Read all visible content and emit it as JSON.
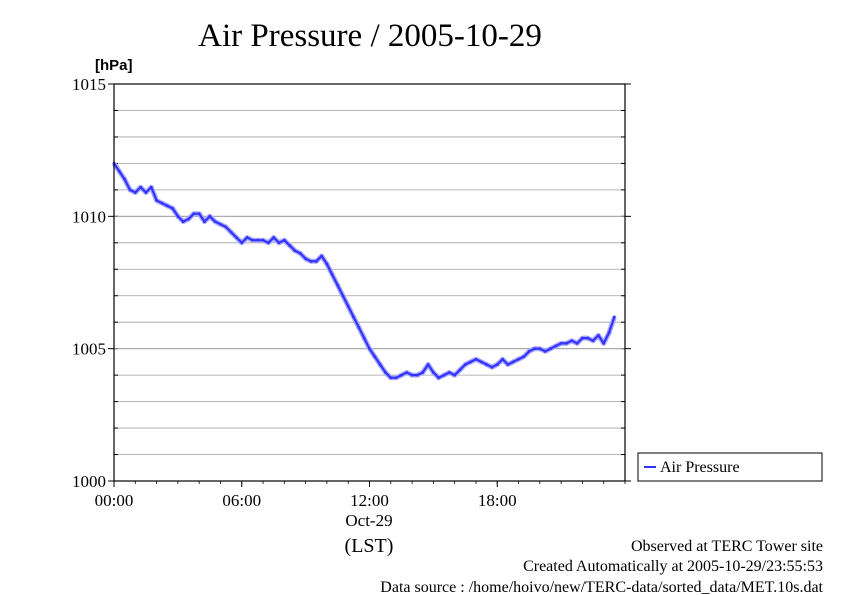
{
  "chart_data": {
    "type": "line",
    "title": "Air Pressure / 2005-10-29",
    "ylabel": "[hPa]",
    "xlabel": "(LST)",
    "x_date_label": "Oct-29",
    "ylim": [
      1000,
      1015
    ],
    "xlim": [
      0,
      24
    ],
    "y_ticks": [
      {
        "value": 1000,
        "label": "1000"
      },
      {
        "value": 1005,
        "label": "1005"
      },
      {
        "value": 1010,
        "label": "1010"
      },
      {
        "value": 1015,
        "label": "1015"
      }
    ],
    "x_ticks": [
      {
        "value": 0,
        "label": "00:00"
      },
      {
        "value": 6,
        "label": "06:00"
      },
      {
        "value": 12,
        "label": "12:00"
      },
      {
        "value": 18,
        "label": "18:00"
      }
    ],
    "grid": true,
    "legend_position": "right",
    "series": [
      {
        "name": "Air Pressure",
        "color": "#3333ff",
        "x": [
          0.0,
          0.25,
          0.5,
          0.75,
          1.0,
          1.25,
          1.5,
          1.75,
          2.0,
          2.25,
          2.5,
          2.75,
          3.0,
          3.25,
          3.5,
          3.75,
          4.0,
          4.25,
          4.5,
          4.75,
          5.0,
          5.25,
          5.5,
          5.75,
          6.0,
          6.25,
          6.5,
          6.75,
          7.0,
          7.25,
          7.5,
          7.75,
          8.0,
          8.25,
          8.5,
          8.75,
          9.0,
          9.25,
          9.5,
          9.75,
          10.0,
          10.25,
          10.5,
          10.75,
          11.0,
          11.25,
          11.5,
          11.75,
          12.0,
          12.25,
          12.5,
          12.75,
          13.0,
          13.25,
          13.5,
          13.75,
          14.0,
          14.25,
          14.5,
          14.75,
          15.0,
          15.25,
          15.5,
          15.75,
          16.0,
          16.25,
          16.5,
          16.75,
          17.0,
          17.25,
          17.5,
          17.75,
          18.0,
          18.25,
          18.5,
          18.75,
          19.0,
          19.25,
          19.5,
          19.75,
          20.0,
          20.25,
          20.5,
          20.75,
          21.0,
          21.25,
          21.5,
          21.75,
          22.0,
          22.25,
          22.5,
          22.75,
          23.0,
          23.25,
          23.5
        ],
        "values": [
          1012.0,
          1011.7,
          1011.4,
          1011.0,
          1010.9,
          1011.1,
          1010.9,
          1011.1,
          1010.6,
          1010.5,
          1010.4,
          1010.3,
          1010.0,
          1009.8,
          1009.9,
          1010.1,
          1010.1,
          1009.8,
          1010.0,
          1009.8,
          1009.7,
          1009.6,
          1009.4,
          1009.2,
          1009.0,
          1009.2,
          1009.1,
          1009.1,
          1009.1,
          1009.0,
          1009.2,
          1009.0,
          1009.1,
          1008.9,
          1008.7,
          1008.6,
          1008.4,
          1008.3,
          1008.3,
          1008.5,
          1008.2,
          1007.8,
          1007.4,
          1007.0,
          1006.6,
          1006.2,
          1005.8,
          1005.4,
          1005.0,
          1004.7,
          1004.4,
          1004.1,
          1003.9,
          1003.9,
          1004.0,
          1004.1,
          1004.0,
          1004.0,
          1004.1,
          1004.4,
          1004.1,
          1003.9,
          1004.0,
          1004.1,
          1004.0,
          1004.2,
          1004.4,
          1004.5,
          1004.6,
          1004.5,
          1004.4,
          1004.3,
          1004.4,
          1004.6,
          1004.4,
          1004.5,
          1004.6,
          1004.7,
          1004.9,
          1005.0,
          1005.0,
          1004.9,
          1005.0,
          1005.1,
          1005.2,
          1005.2,
          1005.3,
          1005.2,
          1005.4,
          1005.4,
          1005.3,
          1005.5,
          1005.2,
          1005.6,
          1006.2
        ]
      }
    ]
  },
  "footer": {
    "line1": "Observed at TERC Tower site",
    "line2": "Created Automatically at 2005-10-29/23:55:53",
    "line3": "Data source : /home/hoivo/new/TERC-data/sorted_data/MET.10s.dat"
  }
}
